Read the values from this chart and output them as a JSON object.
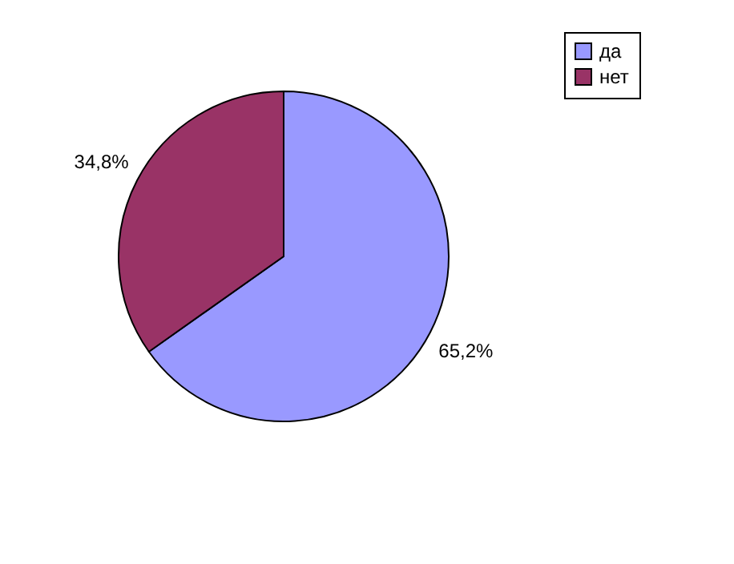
{
  "chart_data": {
    "type": "pie",
    "categories": [
      "да",
      "нет"
    ],
    "values": [
      65.2,
      34.8
    ],
    "colors": [
      "#9999ff",
      "#993366"
    ],
    "value_labels": [
      "65,2%",
      "34,8%"
    ],
    "legend": "right"
  }
}
